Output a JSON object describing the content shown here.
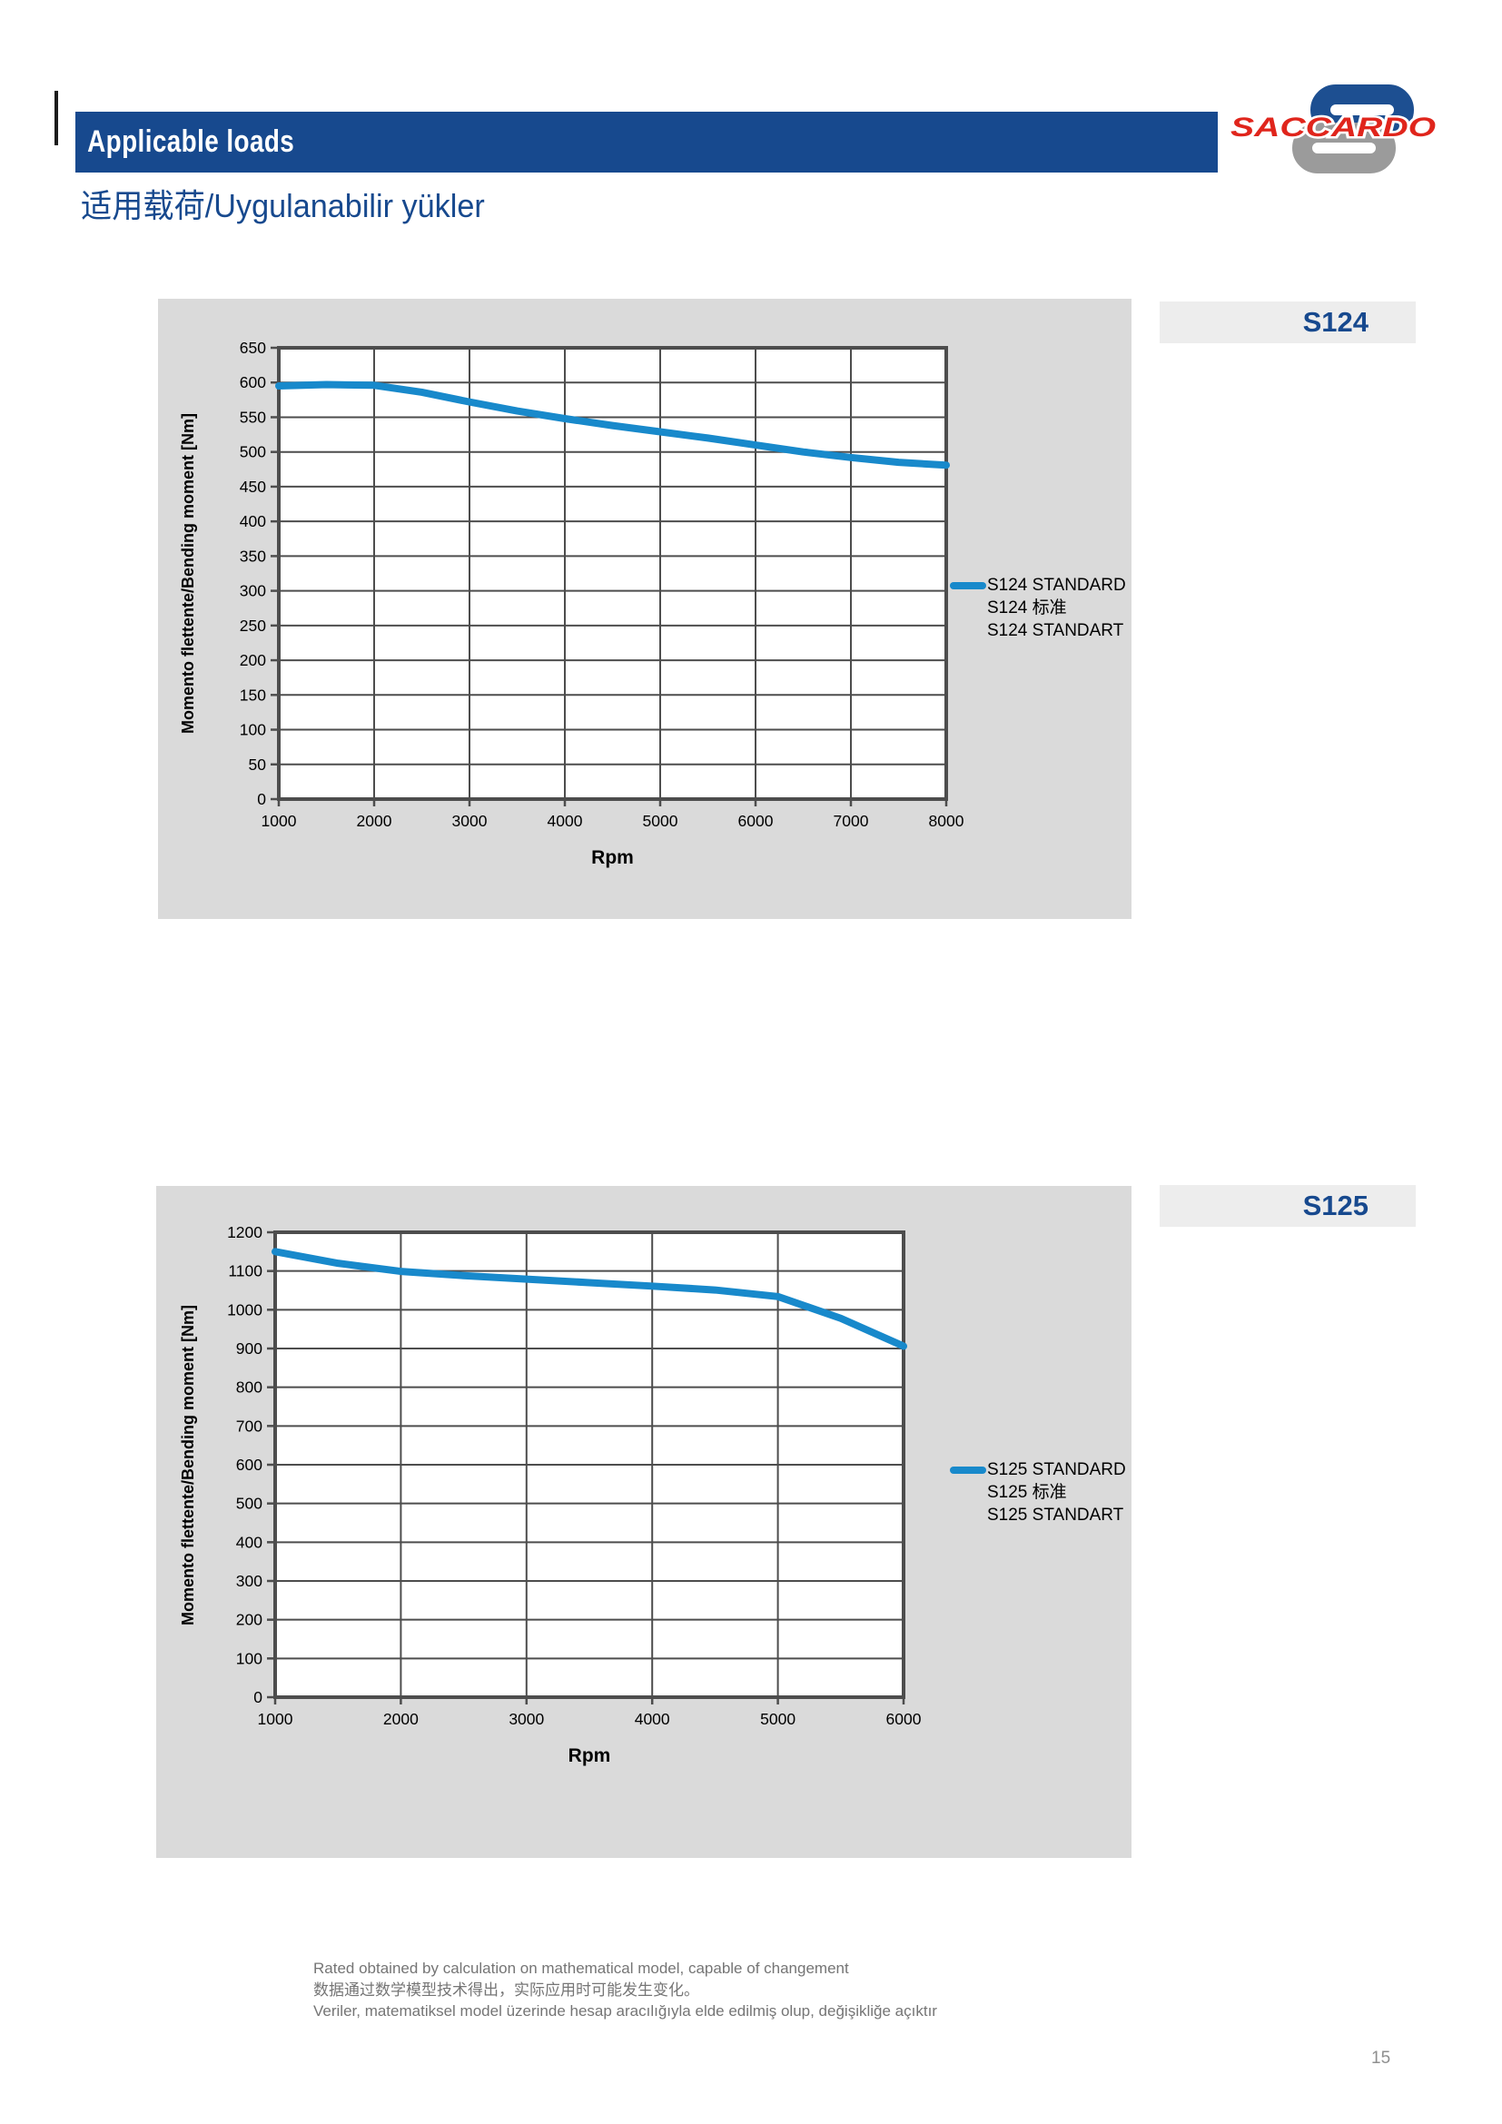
{
  "page": {
    "title": "Applicable loads",
    "subtitle": "适用载荷/Uygulanabilir yükler",
    "logo_text": "SACCARDO",
    "page_number": "15",
    "footer_lines": [
      "Rated obtained by calculation on mathematical model, capable of changement",
      "数据通过数学模型技术得出，实际应用时可能发生变化。",
      "Veriler, matematiksel model üzerinde hesap aracılığıyla elde edilmiş olup, değişikliğe açıktır"
    ],
    "colors": {
      "accent_navy": "#17498e",
      "curve_blue": "#1889cb",
      "panel_gray": "#dadada",
      "badge_gray": "#ededed",
      "logo_red": "#e0251c",
      "logo_blue": "#1d4f91",
      "logo_gray": "#9b9b9b"
    }
  },
  "chart_data": [
    {
      "type": "line",
      "model": "S124",
      "ylabel": "Momento flettente/Bending moment [Nm]",
      "xlabel": "Rpm",
      "legend": [
        "S124 STANDARD",
        "S124 标准",
        "S124 STANDART"
      ],
      "legend_position": "right",
      "grid": true,
      "xlim": [
        1000,
        8000
      ],
      "ylim": [
        0,
        650
      ],
      "x_ticks": [
        1000,
        2000,
        3000,
        4000,
        5000,
        6000,
        7000,
        8000
      ],
      "y_ticks": [
        0,
        50,
        100,
        150,
        200,
        250,
        300,
        350,
        400,
        450,
        500,
        550,
        600,
        650
      ],
      "line_color": "#1889cb",
      "series": [
        {
          "name": "S124 STANDARD",
          "x": [
            1000,
            1500,
            2000,
            2500,
            3000,
            3500,
            4000,
            4500,
            5000,
            5500,
            6000,
            6500,
            7000,
            7500,
            8000
          ],
          "y": [
            595,
            597,
            596,
            586,
            572,
            559,
            548,
            538,
            529,
            520,
            510,
            500,
            492,
            485,
            481
          ]
        }
      ]
    },
    {
      "type": "line",
      "model": "S125",
      "ylabel": "Momento flettente/Bending moment [Nm]",
      "xlabel": "Rpm",
      "legend": [
        "S125 STANDARD",
        "S125 标准",
        "S125 STANDART"
      ],
      "legend_position": "right",
      "grid": true,
      "xlim": [
        1000,
        6000
      ],
      "ylim": [
        0,
        1200
      ],
      "x_ticks": [
        1000,
        2000,
        3000,
        4000,
        5000,
        6000
      ],
      "y_ticks": [
        0,
        100,
        200,
        300,
        400,
        500,
        600,
        700,
        800,
        900,
        1000,
        1100,
        1200
      ],
      "line_color": "#1889cb",
      "series": [
        {
          "name": "S125 STANDARD",
          "x": [
            1000,
            1500,
            2000,
            2500,
            3000,
            3500,
            4000,
            4500,
            5000,
            5500,
            6000
          ],
          "y": [
            1150,
            1120,
            1099,
            1088,
            1079,
            1070,
            1061,
            1051,
            1034,
            978,
            906
          ]
        }
      ]
    }
  ]
}
